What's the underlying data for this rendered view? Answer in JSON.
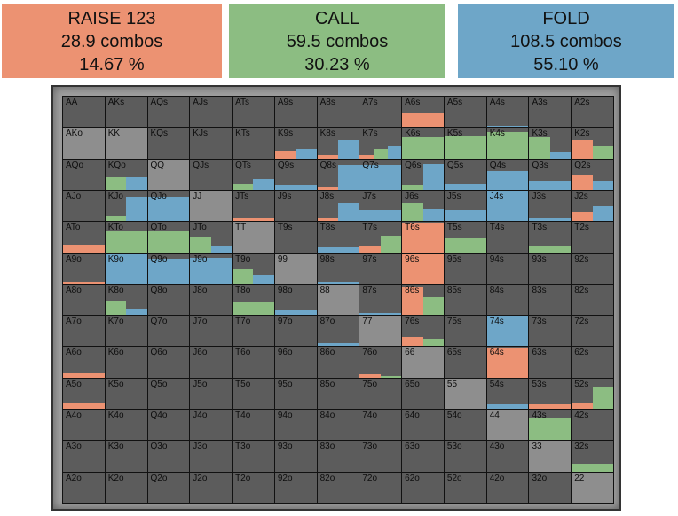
{
  "colors": {
    "raise": "#ec9272",
    "call": "#8cbd82",
    "fold": "#6ea6c8",
    "empty": "#5c5c5c",
    "pair": "#8e8e8e"
  },
  "actions": [
    {
      "id": "raise",
      "title": "RAISE 123",
      "combos": "28.9 combos",
      "percent": "14.67 %"
    },
    {
      "id": "call",
      "title": "CALL",
      "combos": "59.5 combos",
      "percent": "30.23 %"
    },
    {
      "id": "fold",
      "title": "FOLD",
      "combos": "108.5 combos",
      "percent": "55.10 %"
    }
  ],
  "ranks": [
    "A",
    "K",
    "Q",
    "J",
    "T",
    "9",
    "8",
    "7",
    "6",
    "5",
    "4",
    "3",
    "2"
  ],
  "cells": {
    "A6s": {
      "raise": 0.45
    },
    "A4s": {
      "fold": 0.05
    },
    "AKo": {
      "pair": 1
    },
    "KK": {
      "pair": 1
    },
    "K9s": {
      "raise": 0.25,
      "fold": 0.3
    },
    "K8s": {
      "raise": 0.1,
      "fold": 0.6
    },
    "K7s": {
      "raise": 0.1,
      "call": 0.3,
      "fold": 0.4
    },
    "K6s": {
      "call": 0.7
    },
    "K5s": {
      "call": 0.75
    },
    "K4s": {
      "call": 0.85
    },
    "K3s": {
      "call": 0.7,
      "fold": 0.2
    },
    "K2s": {
      "raise": 0.6,
      "call": 0.4
    },
    "QQ": {
      "pair": 1
    },
    "QTs": {
      "call": 0.2,
      "fold": 0.35
    },
    "Q9s": {
      "fold": 0.15
    },
    "Q8s": {
      "raise": 0.1,
      "fold": 0.8
    },
    "Q7s": {
      "fold": 0.8
    },
    "Q6s": {
      "call": 0.15,
      "fold": 0.85
    },
    "Q5s": {
      "fold": 0.2
    },
    "Q4s": {
      "fold": 0.6
    },
    "Q3s": {
      "fold": 0.3
    },
    "Q2s": {
      "raise": 0.5,
      "fold": 0.3
    },
    "KQo": {
      "call": 0.4,
      "fold": 0.4
    },
    "KJo": {
      "call": 0.15,
      "fold": 0.8
    },
    "QJo": {
      "fold": 0.8
    },
    "JJ": {
      "pair": 1
    },
    "JTs": {
      "raise": 0.08
    },
    "J8s": {
      "raise": 0.1,
      "fold": 0.6
    },
    "J7s": {
      "fold": 0.35
    },
    "J6s": {
      "call": 0.6,
      "fold": 0.4
    },
    "J5s": {
      "fold": 0.35
    },
    "J4s": {
      "fold": 1
    },
    "J3s": {
      "fold": 0.1
    },
    "J2s": {
      "raise": 0.3,
      "fold": 0.5
    },
    "ATo": {
      "raise": 0.25
    },
    "KTo": {
      "call": 0.7
    },
    "QTo": {
      "call": 0.7
    },
    "JTo": {
      "call": 0.5,
      "fold": 0.2
    },
    "TT": {
      "pair": 1
    },
    "T8s": {
      "fold": 0.15
    },
    "T7s": {
      "raise": 0.2,
      "call": 0.55
    },
    "T6s": {
      "raise": 0.95
    },
    "T5s": {
      "call": 0.45
    },
    "T3s": {
      "call": 0.2
    },
    "A9o": {
      "raise": 0.05
    },
    "K9o": {
      "fold": 1
    },
    "Q9o": {
      "fold": 0.8
    },
    "J9o": {
      "fold": 0.85
    },
    "T9o": {
      "call": 0.5,
      "fold": 0.3
    },
    "99": {
      "pair": 1
    },
    "98s": {
      "fold": 0.05
    },
    "96s": {
      "raise": 0.95
    },
    "K8o": {
      "call": 0.45,
      "fold": 0.2
    },
    "T8o": {
      "call": 0.4
    },
    "98o": {
      "fold": 0.15
    },
    "88": {
      "pair": 1
    },
    "87s": {
      "fold": 0.05
    },
    "86s": {
      "raise": 0.9,
      "call": 0.6
    },
    "77": {
      "pair": 1
    },
    "76s": {
      "raise": 0.3,
      "call": 0.25
    },
    "74s": {
      "fold": 1
    },
    "A6o": {
      "raise": 0.15
    },
    "87o": {
      "fold": 0.1
    },
    "76o": {
      "raise": 0.1,
      "call": 0.05
    },
    "66": {
      "pair": 1
    },
    "64s": {
      "raise": 0.95
    },
    "A5o": {
      "raise": 0.2
    },
    "55": {
      "pair": 1
    },
    "54s": {
      "fold": 0.15
    },
    "53s": {
      "raise": 0.15
    },
    "52s": {
      "raise": 0.2,
      "call": 0.7
    },
    "44": {
      "pair": 1
    },
    "43s": {
      "call": 0.75
    },
    "33": {
      "pair": 1
    },
    "32s": {
      "call": 0.25
    },
    "22": {
      "pair": 1
    }
  }
}
